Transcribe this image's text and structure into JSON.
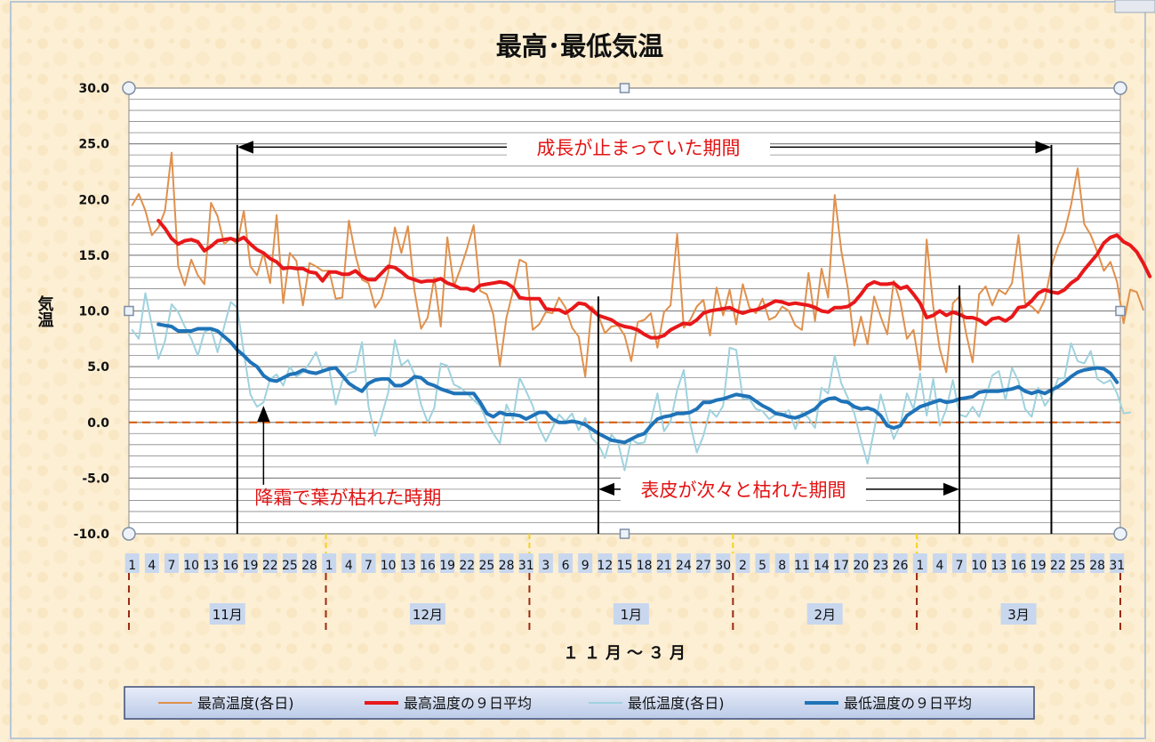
{
  "chart_data": {
    "type": "line",
    "title": "最高･最低気温",
    "ylabel": "気温",
    "xlabel": "１１月～３月",
    "ylim": [
      -10,
      30
    ],
    "yticks": [
      "30.0",
      "25.0",
      "20.0",
      "15.0",
      "10.0",
      "5.0",
      "0.0",
      "-5.0",
      "-10.0"
    ],
    "grid": true,
    "legend_position": "bottom",
    "zero_line_color": "#d55500",
    "months": [
      {
        "label": "11月",
        "days": 30,
        "day_ticks": [
          "1",
          "4",
          "7",
          "10",
          "13",
          "16",
          "19",
          "22",
          "25",
          "28"
        ]
      },
      {
        "label": "12月",
        "days": 31,
        "day_ticks": [
          "1",
          "4",
          "7",
          "10",
          "13",
          "16",
          "19",
          "22",
          "25",
          "28",
          "31"
        ]
      },
      {
        "label": "1月",
        "days": 31,
        "day_ticks": [
          "3",
          "6",
          "9",
          "12",
          "15",
          "18",
          "21",
          "24",
          "27",
          "30"
        ]
      },
      {
        "label": "2月",
        "days": 28,
        "day_ticks": [
          "2",
          "5",
          "8",
          "11",
          "14",
          "17",
          "20",
          "23",
          "26"
        ]
      },
      {
        "label": "3月",
        "days": 31,
        "day_ticks": [
          "1",
          "4",
          "7",
          "10",
          "13",
          "16",
          "19",
          "22",
          "25",
          "28",
          "31"
        ]
      }
    ],
    "series": [
      {
        "name": "最高温度(各日)",
        "color": "#e0904c",
        "width": 2,
        "values": [
          19.5,
          20.5,
          19,
          16.8,
          17.5,
          19,
          24.2,
          14,
          12.3,
          14.6,
          13.2,
          12.4,
          19.7,
          18.5,
          16,
          16.5,
          16,
          19,
          14,
          13.2,
          15.2,
          12.5,
          18.6,
          10.7,
          15.2,
          14.5,
          10.5,
          14.3,
          14,
          13.6,
          13.6,
          11.1,
          11.2,
          18.1,
          15,
          12.8,
          12.5,
          10.3,
          11.2,
          13.5,
          17.5,
          15.2,
          17.6,
          11.8,
          8.4,
          9.4,
          13,
          8.6,
          16.6,
          12.2,
          13.8,
          15.6,
          17.7,
          11.8,
          11.5,
          9.7,
          5.1,
          9.4,
          11.8,
          14.6,
          14.3,
          8.3,
          8.8,
          9.9,
          9.8,
          11.2,
          10.3,
          8.5,
          7.7,
          4.1,
          10.4,
          9.6,
          8,
          8.6,
          8.7,
          7.8,
          5.5,
          9,
          9.2,
          9.8,
          6.7,
          9.9,
          10.5,
          16.9,
          8.5,
          9.2,
          10.4,
          11,
          7.8,
          12.1,
          9.6,
          11.9,
          8.8,
          12.4,
          10.3,
          9.8,
          11.1,
          9.2,
          9.5,
          10.4,
          10,
          8.7,
          8.3,
          13.4,
          9.1,
          13.8,
          11.2,
          20.4,
          15.4,
          12,
          6.9,
          9.5,
          7,
          11.3,
          9.5,
          7.9,
          12.7,
          10.8,
          7.5,
          8.3,
          4.7,
          16.4,
          10.4,
          6.6,
          4.5,
          10.7,
          11.3,
          8,
          5.4,
          11.5,
          12.2,
          10.5,
          11.9,
          11.5,
          12.5,
          16.8,
          10.7,
          10.4,
          9.8,
          11,
          14,
          15.8,
          17.1,
          19.5,
          22.8,
          17.8,
          16.8,
          15.3,
          13.6,
          14.4,
          12.6,
          8.9,
          11.9,
          11.7,
          10.1
        ]
      },
      {
        "name": "最高温度の９日平均",
        "color": "#e8181a",
        "width": 4,
        "start_day": 5,
        "values": [
          18.1,
          17.4,
          16.5,
          16,
          16.3,
          16.4,
          16.2,
          15.4,
          15.8,
          16.3,
          16.4,
          16.5,
          16.3,
          16.6,
          16,
          15.5,
          15.2,
          14.7,
          14.4,
          13.8,
          13.9,
          13.8,
          13.8,
          13.5,
          13.4,
          12.7,
          13.5,
          13.5,
          13.3,
          13.3,
          13.6,
          13.1,
          12.8,
          12.8,
          13.4,
          14,
          13.9,
          13.5,
          13,
          12.8,
          12.6,
          12.7,
          12.7,
          12.9,
          12.5,
          12.3,
          12,
          12,
          11.8,
          12.3,
          12.4,
          12.5,
          12.6,
          12.5,
          12.1,
          11.2,
          11.1,
          11.1,
          11.1,
          10.2,
          10.1,
          10.1,
          9.8,
          10.2,
          10.7,
          10.6,
          10.1,
          9.6,
          9.4,
          9.2,
          8.8,
          8.6,
          8.5,
          8.3,
          7.9,
          7.6,
          7.6,
          7.8,
          8.3,
          8.6,
          8.9,
          8.8,
          9.2,
          9.8,
          10,
          10.1,
          10.2,
          10.3,
          10,
          9.8,
          10,
          10.1,
          10.3,
          10.6,
          10.9,
          10.8,
          10.6,
          10.7,
          10.6,
          10.5,
          10.3,
          10,
          9.9,
          10.3,
          10.3,
          10.4,
          10.8,
          11.5,
          12.3,
          12.6,
          12.4,
          12.4,
          12.5,
          12,
          12.2,
          11.5,
          10.7,
          9.4,
          9.6,
          10,
          9.6,
          9.9,
          9.7,
          9.4,
          9.4,
          9.2,
          8.8,
          9.3,
          9.4,
          9.1,
          9.5,
          10.3,
          10.4,
          10.9,
          11.6,
          11.9,
          11.7,
          11.6,
          11.9,
          12.5,
          12.9,
          13.7,
          14.4,
          15.1,
          16.1,
          16.6,
          16.8,
          16.2,
          15.9,
          15.3,
          14.3,
          13.1
        ]
      },
      {
        "name": "最低温度(各日)",
        "color": "#9fd2de",
        "width": 2,
        "values": [
          8.3,
          7.5,
          11.6,
          8.7,
          5.7,
          7.3,
          10.6,
          9.9,
          8.6,
          7.5,
          6,
          8.1,
          8.4,
          6.3,
          8.6,
          10.8,
          10.3,
          6.3,
          2.5,
          1.4,
          1.8,
          3.9,
          4.3,
          3.3,
          5,
          4.1,
          4.5,
          5.3,
          6.3,
          4.7,
          4.8,
          1.6,
          3.7,
          4.4,
          4.6,
          7.2,
          1.4,
          -1.2,
          0.6,
          2.7,
          7.4,
          5.1,
          5.6,
          4.3,
          1.6,
          0,
          1.3,
          5.3,
          5.1,
          3.4,
          3.1,
          2.6,
          2,
          1.5,
          0.1,
          -1,
          -1.9,
          1.6,
          0.3,
          4,
          2.8,
          1.5,
          -0.5,
          -1.7,
          -0.5,
          0.7,
          0.1,
          0.8,
          -0.7,
          0.4,
          -1.4,
          -2,
          -3.2,
          -1.1,
          -1.8,
          -4.3,
          -1.5,
          -1.9,
          -1.8,
          0.1,
          2.6,
          -0.8,
          0.1,
          2.9,
          4.7,
          -0.1,
          -2.7,
          -1.2,
          1.1,
          0.5,
          1.5,
          6.7,
          6.5,
          2.1,
          2.1,
          1.2,
          1,
          0.3,
          0.7,
          0.6,
          1.1,
          -0.6,
          0.9,
          0.4,
          -0.5,
          3.1,
          2.6,
          6,
          3.5,
          2.2,
          0.8,
          -1.6,
          -3.7,
          -0.7,
          2.5,
          0.4,
          -1.5,
          -0.2,
          2.6,
          1.2,
          4.4,
          0.6,
          3.9,
          -0.3,
          1.2,
          3.8,
          0.7,
          0.5,
          1.4,
          0.5,
          2.3,
          4.2,
          4.6,
          2,
          4.9,
          3.7,
          1.2,
          0.5,
          3.1,
          1.5,
          2.3,
          3.9,
          4,
          7.1,
          5.5,
          5.3,
          6.4,
          3.9,
          3.5,
          3.8,
          2.6,
          0.8,
          0.9
        ]
      },
      {
        "name": "最低温度の９日平均",
        "color": "#1f73b8",
        "width": 4,
        "start_day": 5,
        "values": [
          8.8,
          8.7,
          8.6,
          8.2,
          8.2,
          8.2,
          8.4,
          8.4,
          8.4,
          8.2,
          7.7,
          7.2,
          6.5,
          6,
          5.4,
          5,
          4.2,
          3.8,
          3.7,
          4,
          4.3,
          4.4,
          4.7,
          4.5,
          4.4,
          4.6,
          4.8,
          4.9,
          4.2,
          3.5,
          3.1,
          2.8,
          3.5,
          3.8,
          3.9,
          3.9,
          3.3,
          3.3,
          3.6,
          4.1,
          4,
          3.5,
          3.3,
          3,
          2.8,
          2.6,
          2.6,
          2.6,
          2.6,
          1.8,
          0.8,
          0.5,
          0.9,
          0.7,
          0.7,
          0.6,
          0.3,
          0.6,
          0.9,
          0.9,
          0.3,
          0,
          0,
          0.1,
          0,
          -0.2,
          -0.6,
          -1,
          -1.3,
          -1.6,
          -1.7,
          -1.8,
          -1.5,
          -1.2,
          -1,
          -0.3,
          0.3,
          0.5,
          0.6,
          0.8,
          0.8,
          0.9,
          1.2,
          1.8,
          1.8,
          2,
          2.1,
          2.3,
          2.5,
          2.4,
          2.3,
          1.9,
          1.5,
          1.2,
          0.8,
          0.7,
          0.5,
          0.4,
          0.6,
          0.9,
          1.2,
          1.8,
          2.1,
          2.2,
          1.9,
          1.8,
          1.4,
          1.2,
          1.3,
          1.1,
          0.6,
          -0.3,
          -0.5,
          -0.3,
          0.6,
          1,
          1.4,
          1.6,
          1.8,
          2,
          1.8,
          1.9,
          2.1,
          2.2,
          2.3,
          2.7,
          2.8,
          2.8,
          2.8,
          2.9,
          3,
          3.2,
          2.8,
          2.6,
          2.8,
          2.6,
          2.9,
          3.2,
          3.6,
          4.1,
          4.5,
          4.7,
          4.8,
          4.9,
          4.8,
          4.4,
          3.6
        ]
      }
    ],
    "annotations": [
      {
        "text": "成長が止まっていた期間",
        "from_day": 17,
        "to_day": 141,
        "y": 24.7,
        "arrow": "double",
        "color": "#e31313"
      },
      {
        "text": "降霜で葉が枯れた時期",
        "at_day": 21,
        "arrow_tip_y": 1.5,
        "arrow_tail_y": -5.6,
        "text_y": -6.6,
        "color": "#e31313"
      },
      {
        "text": "表皮が次々と枯れた期間",
        "from_day": 72,
        "to_day": 127,
        "y": -6,
        "arrow": "double",
        "color": "#e31313"
      }
    ],
    "vertical_markers_day": [
      17,
      72,
      127,
      141
    ]
  }
}
